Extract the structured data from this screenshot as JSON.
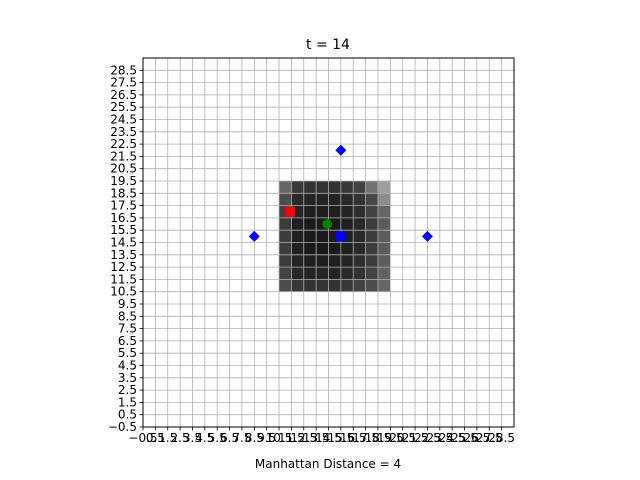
{
  "chart_data": {
    "type": "scatter",
    "title": "t = 14",
    "xlabel": "Manhattan Distance = 4",
    "ylabel": "",
    "xlim": [
      -0.5,
      29.5
    ],
    "ylim": [
      -0.5,
      29.5
    ],
    "grid": true,
    "xtick_labels": [
      "−0.5",
      "0.5",
      "1.5",
      "2.5",
      "3.5",
      "4.5",
      "5.5",
      "6.5",
      "7.5",
      "8.5",
      "9.5",
      "10.5",
      "11.5",
      "12.5",
      "13.5",
      "14.5",
      "15.5",
      "16.5",
      "17.5",
      "18.5",
      "19.5",
      "20.5",
      "21.5",
      "22.5",
      "23.5",
      "24.5",
      "25.5",
      "26.5",
      "27.5",
      "28.5"
    ],
    "ytick_labels": [
      "−0.5",
      "0.5",
      "1.5",
      "2.5",
      "3.5",
      "4.5",
      "5.5",
      "6.5",
      "7.5",
      "8.5",
      "9.5",
      "10.5",
      "11.5",
      "12.5",
      "13.5",
      "14.5",
      "15.5",
      "16.5",
      "17.5",
      "18.5",
      "19.5",
      "20.5",
      "21.5",
      "22.5",
      "23.5",
      "24.5",
      "25.5",
      "26.5",
      "27.5",
      "28.5"
    ],
    "heatmap": {
      "x_start": 11,
      "y_start": 11,
      "rows_top_to_bottom": [
        [
          0.4,
          0.22,
          0.2,
          0.2,
          0.2,
          0.22,
          0.26,
          0.45,
          0.62
        ],
        [
          0.3,
          0.16,
          0.14,
          0.14,
          0.14,
          0.16,
          0.2,
          0.28,
          0.55
        ],
        [
          0.26,
          0.14,
          0.12,
          0.12,
          0.12,
          0.14,
          0.18,
          0.26,
          0.4
        ],
        [
          0.24,
          0.12,
          0.1,
          0.1,
          0.1,
          0.12,
          0.16,
          0.24,
          0.36
        ],
        [
          0.24,
          0.12,
          0.1,
          0.1,
          0.1,
          0.12,
          0.16,
          0.24,
          0.36
        ],
        [
          0.24,
          0.12,
          0.1,
          0.1,
          0.1,
          0.12,
          0.16,
          0.24,
          0.36
        ],
        [
          0.24,
          0.14,
          0.12,
          0.12,
          0.12,
          0.14,
          0.18,
          0.24,
          0.36
        ],
        [
          0.26,
          0.16,
          0.14,
          0.14,
          0.14,
          0.16,
          0.2,
          0.26,
          0.38
        ],
        [
          0.3,
          0.22,
          0.2,
          0.2,
          0.2,
          0.22,
          0.26,
          0.3,
          0.4
        ]
      ]
    },
    "markers": [
      {
        "shape": "square",
        "color": "#ff0000",
        "x": 11.4,
        "y": 17.0
      },
      {
        "shape": "circle",
        "color": "#008000",
        "x": 14.4,
        "y": 16.0
      },
      {
        "shape": "square",
        "color": "#0000ff",
        "x": 15.5,
        "y": 15.0
      },
      {
        "shape": "diamond",
        "color": "#0000ff",
        "x": 15.5,
        "y": 22.0
      },
      {
        "shape": "diamond",
        "color": "#0000ff",
        "x": 8.5,
        "y": 15.0
      },
      {
        "shape": "diamond",
        "color": "#0000ff",
        "x": 22.5,
        "y": 15.0
      }
    ]
  }
}
